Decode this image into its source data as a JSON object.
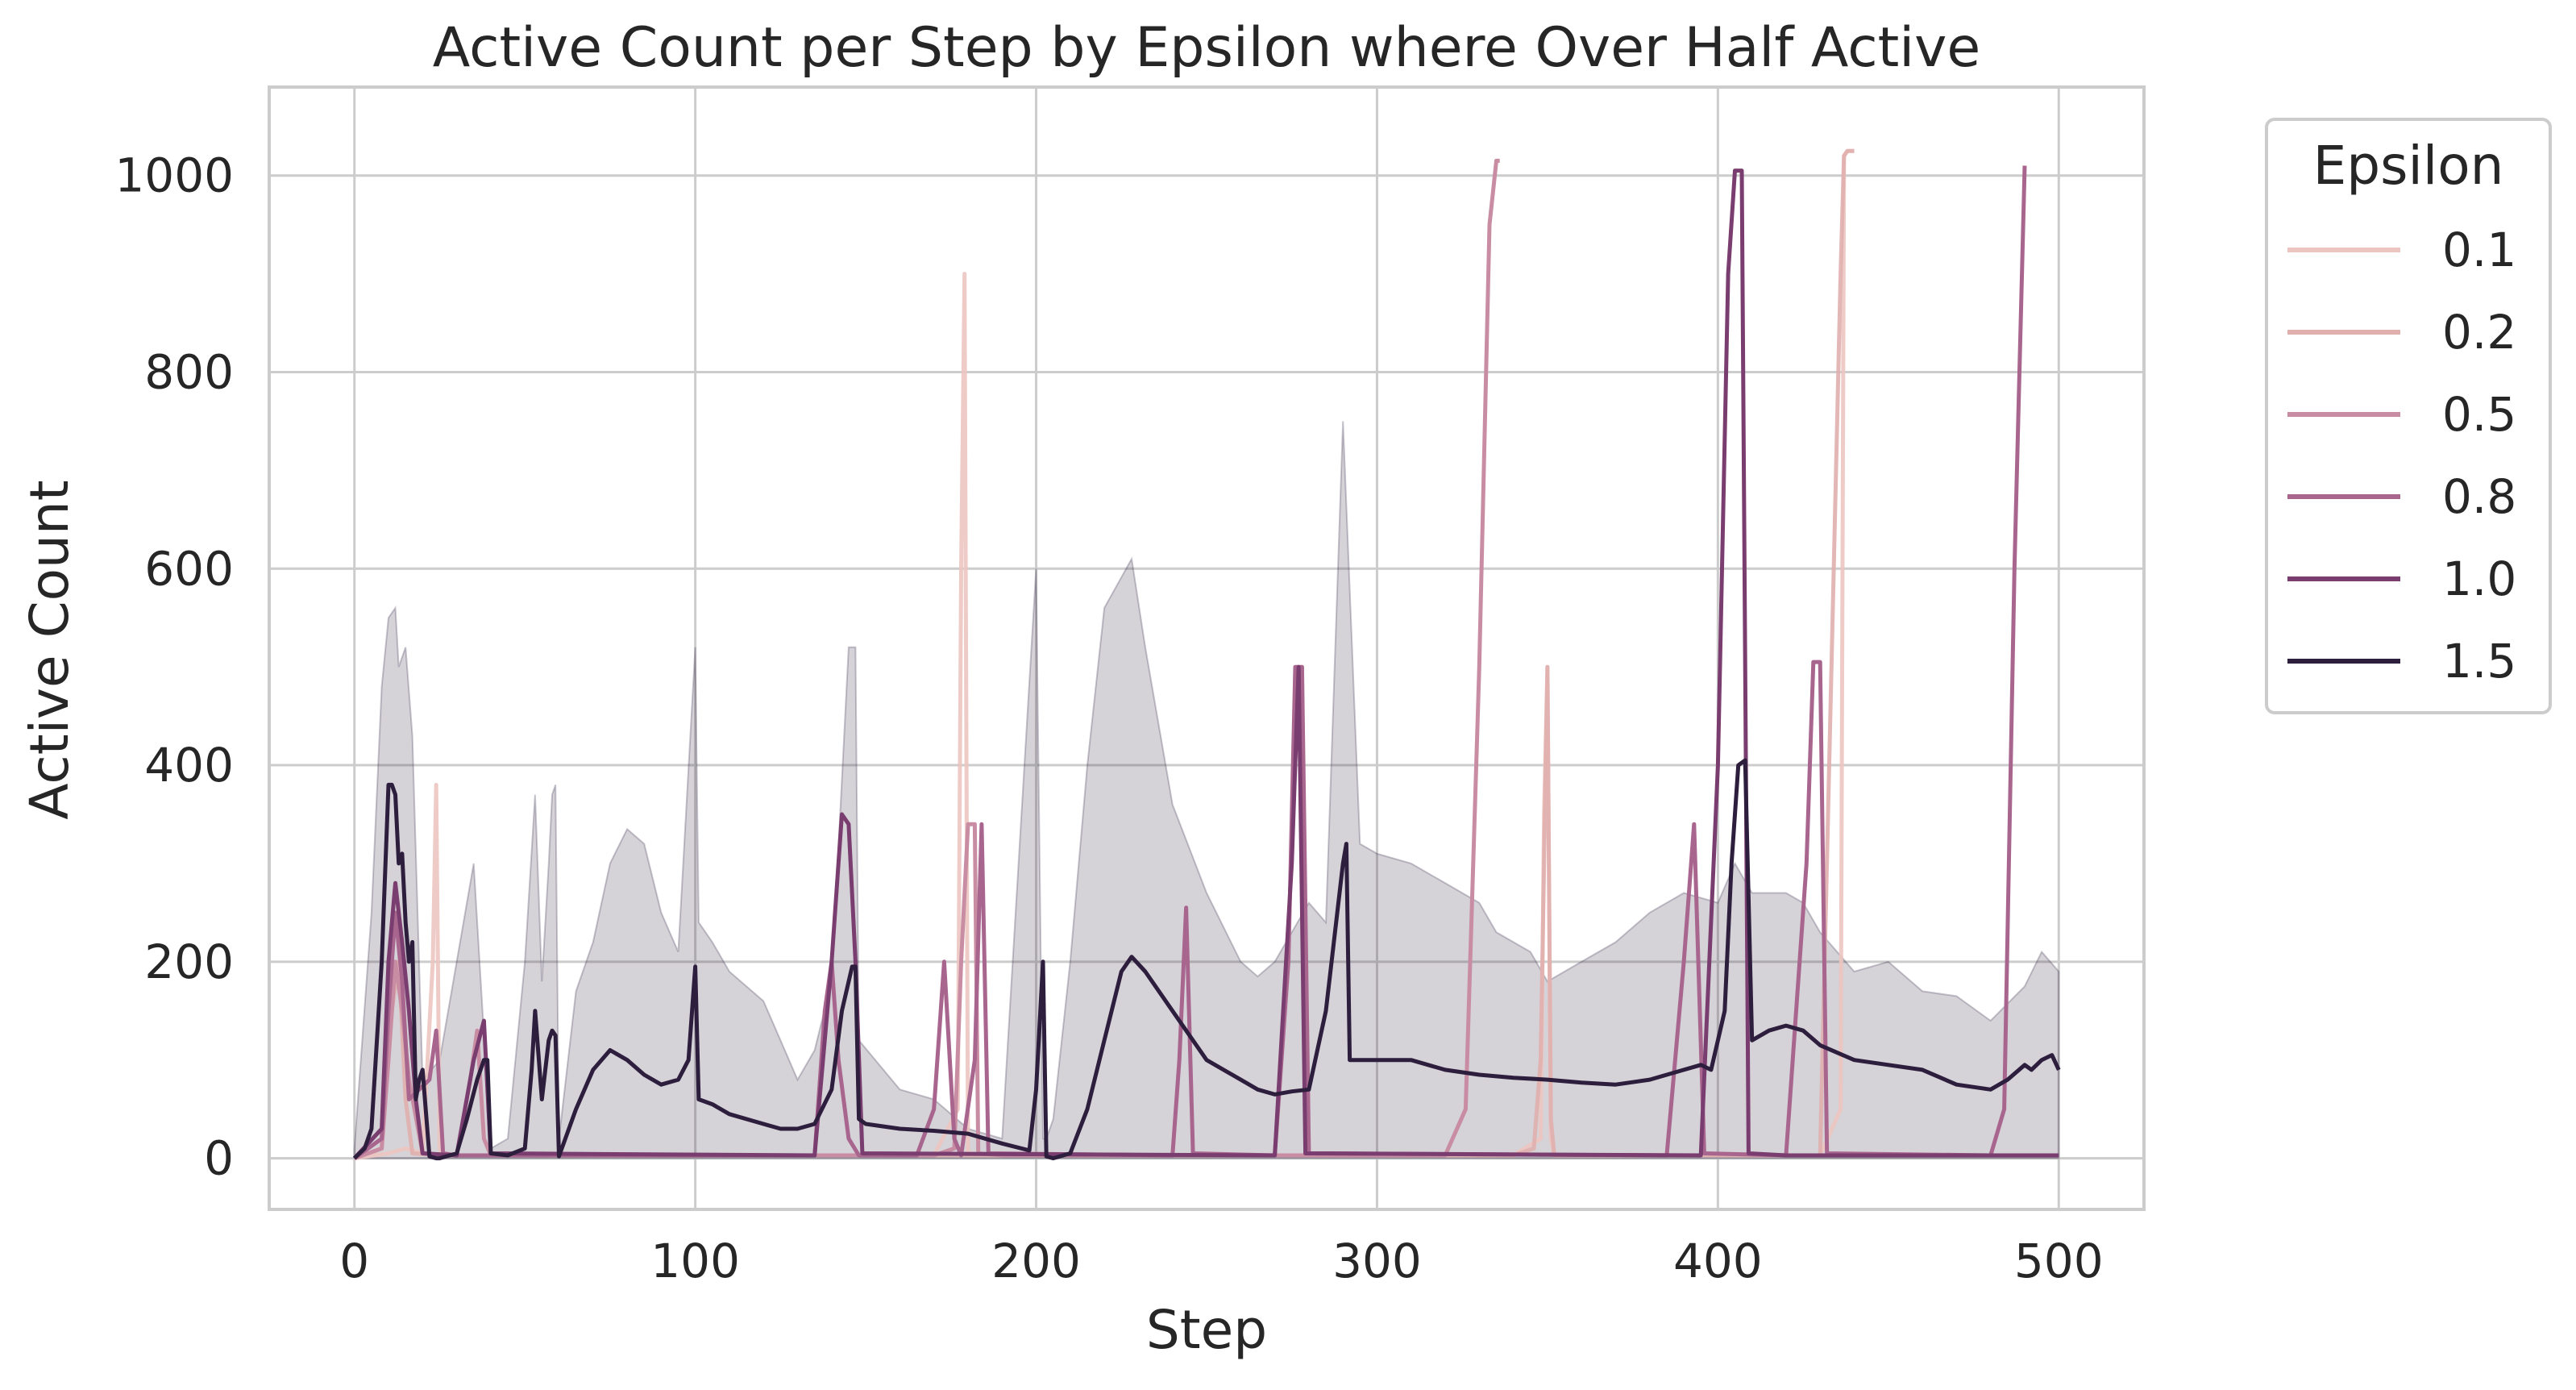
{
  "chart_data": {
    "type": "line",
    "title": "Active Count per Step by Epsilon where Over Half Active",
    "xlabel": "Step",
    "ylabel": "Active Count",
    "xlim": [
      -25,
      525
    ],
    "ylim": [
      -52,
      1090
    ],
    "xticks": [
      0,
      100,
      200,
      300,
      400,
      500
    ],
    "yticks": [
      0,
      200,
      400,
      600,
      800,
      1000
    ],
    "grid": true,
    "legend": {
      "title": "Epsilon",
      "placement": "outside-right-top"
    },
    "band": {
      "series": "1.5",
      "x": [
        0,
        5,
        8,
        10,
        12,
        13,
        15,
        17,
        20,
        25,
        35,
        40,
        45,
        50,
        53,
        55,
        57,
        58,
        59,
        60,
        65,
        70,
        75,
        80,
        85,
        90,
        95,
        100,
        101,
        105,
        110,
        120,
        125,
        130,
        135,
        140,
        145,
        147,
        148,
        160,
        170,
        180,
        190,
        200,
        202,
        203,
        205,
        210,
        215,
        220,
        228,
        232,
        240,
        250,
        260,
        265,
        270,
        275,
        280,
        285,
        290,
        295,
        300,
        310,
        320,
        330,
        335,
        345,
        350,
        360,
        370,
        380,
        390,
        400,
        405,
        410,
        420,
        425,
        430,
        440,
        450,
        460,
        470,
        480,
        490,
        495,
        500
      ],
      "upper": [
        10,
        250,
        480,
        550,
        560,
        500,
        520,
        430,
        80,
        100,
        300,
        10,
        20,
        200,
        370,
        180,
        300,
        370,
        380,
        20,
        170,
        220,
        300,
        335,
        320,
        250,
        210,
        520,
        240,
        220,
        190,
        160,
        120,
        80,
        110,
        180,
        520,
        520,
        120,
        70,
        60,
        30,
        20,
        600,
        20,
        20,
        40,
        200,
        400,
        560,
        610,
        520,
        360,
        270,
        200,
        185,
        200,
        230,
        260,
        240,
        750,
        320,
        310,
        300,
        280,
        260,
        230,
        210,
        180,
        200,
        220,
        250,
        270,
        260,
        300,
        270,
        270,
        260,
        230,
        190,
        200,
        170,
        165,
        140,
        175,
        210,
        190
      ],
      "lower": [
        0,
        0,
        0,
        0,
        0,
        0,
        0,
        0,
        0,
        0,
        0,
        0,
        0,
        0,
        0,
        0,
        0,
        0,
        0,
        0,
        0,
        0,
        0,
        0,
        0,
        0,
        0,
        0,
        0,
        0,
        0,
        0,
        0,
        0,
        0,
        0,
        0,
        0,
        0,
        0,
        0,
        0,
        0,
        0,
        0,
        0,
        0,
        0,
        0,
        0,
        0,
        0,
        0,
        0,
        0,
        0,
        0,
        0,
        0,
        0,
        0,
        0,
        0,
        0,
        0,
        0,
        0,
        0,
        0,
        0,
        0,
        0,
        0,
        0,
        0,
        0,
        0,
        0,
        0,
        0,
        0,
        0,
        0,
        0,
        0,
        0,
        0
      ]
    },
    "series": [
      {
        "name": "0.1",
        "color": "#ecc5c0",
        "opacity": 0.9,
        "x": [
          0,
          10,
          15,
          20,
          23,
          24,
          25,
          26,
          30,
          170,
          177,
          178,
          179,
          180,
          190,
          340,
          348,
          349,
          350,
          351,
          352,
          360,
          430,
          436,
          437,
          438,
          440
        ],
        "y": [
          0,
          5,
          10,
          5,
          200,
          380,
          10,
          3,
          3,
          3,
          50,
          600,
          900,
          5,
          3,
          3,
          20,
          350,
          500,
          20,
          3,
          3,
          3,
          50,
          1020,
          1025,
          1025
        ]
      },
      {
        "name": "0.2",
        "color": "#e0afae",
        "opacity": 0.9,
        "x": [
          0,
          8,
          11,
          13,
          15,
          17,
          25,
          340,
          346,
          348,
          350,
          351,
          352,
          360,
          430,
          436,
          437,
          438,
          440
        ],
        "y": [
          0,
          10,
          150,
          200,
          60,
          5,
          3,
          3,
          10,
          100,
          500,
          40,
          3,
          3,
          3,
          900,
          1020,
          1025,
          1025
        ]
      },
      {
        "name": "0.5",
        "color": "#c98da3",
        "opacity": 1,
        "x": [
          0,
          8,
          10,
          12,
          14,
          16,
          20,
          30,
          34,
          36,
          38,
          40,
          170,
          176,
          178,
          180,
          182,
          183,
          190,
          320,
          326,
          330,
          333,
          335,
          336
        ],
        "y": [
          0,
          10,
          100,
          200,
          150,
          80,
          5,
          3,
          80,
          130,
          20,
          3,
          3,
          10,
          200,
          340,
          340,
          5,
          3,
          3,
          50,
          500,
          950,
          1015,
          1015
        ]
      },
      {
        "name": "0.8",
        "color": "#a8668f",
        "opacity": 1,
        "x": [
          0,
          8,
          10,
          12,
          14,
          16,
          22,
          24,
          26,
          30,
          135,
          138,
          140,
          142,
          145,
          148,
          150,
          165,
          170,
          173,
          176,
          178,
          182,
          184,
          186,
          240,
          242,
          244,
          246,
          270,
          274,
          276,
          278,
          280,
          385,
          390,
          393,
          396,
          420,
          426,
          428,
          430,
          432,
          480,
          484,
          487,
          490
        ],
        "y": [
          0,
          20,
          150,
          250,
          180,
          60,
          80,
          130,
          5,
          3,
          3,
          150,
          200,
          100,
          20,
          3,
          3,
          3,
          50,
          200,
          20,
          3,
          100,
          340,
          5,
          3,
          100,
          255,
          5,
          3,
          200,
          500,
          500,
          5,
          3,
          200,
          340,
          5,
          3,
          300,
          505,
          505,
          5,
          3,
          50,
          600,
          1010
        ]
      },
      {
        "name": "1.0",
        "color": "#7a3d6f",
        "opacity": 1,
        "x": [
          0,
          8,
          10,
          12,
          14,
          16,
          18,
          20,
          30,
          35,
          38,
          40,
          135,
          140,
          143,
          145,
          147,
          149,
          270,
          275,
          277,
          279,
          395,
          400,
          403,
          405,
          407,
          409,
          420,
          460,
          500
        ],
        "y": [
          0,
          30,
          200,
          280,
          220,
          150,
          60,
          5,
          3,
          100,
          140,
          5,
          3,
          200,
          350,
          340,
          200,
          5,
          3,
          300,
          500,
          5,
          3,
          400,
          900,
          1005,
          1005,
          5,
          3,
          3,
          3
        ]
      },
      {
        "name": "1.5",
        "color": "#2d1e3e",
        "opacity": 1,
        "x": [
          0,
          3,
          5,
          8,
          10,
          11,
          12,
          13,
          14,
          15,
          16,
          17,
          18,
          19,
          20,
          22,
          24,
          25,
          26,
          30,
          33,
          36,
          38,
          39,
          40,
          45,
          50,
          52,
          53,
          55,
          57,
          58,
          59,
          60,
          65,
          70,
          75,
          80,
          85,
          90,
          95,
          98,
          100,
          101,
          105,
          110,
          120,
          125,
          130,
          135,
          140,
          143,
          146,
          147,
          148,
          150,
          160,
          170,
          180,
          190,
          198,
          200,
          202,
          203,
          205,
          210,
          215,
          220,
          225,
          228,
          232,
          240,
          250,
          260,
          265,
          270,
          275,
          280,
          285,
          290,
          291,
          292,
          300,
          310,
          320,
          330,
          340,
          350,
          360,
          370,
          380,
          390,
          395,
          398,
          400,
          402,
          404,
          406,
          408,
          410,
          415,
          420,
          425,
          430,
          440,
          450,
          460,
          470,
          480,
          485,
          490,
          492,
          495,
          498,
          500
        ],
        "y": [
          0,
          10,
          30,
          200,
          380,
          380,
          370,
          300,
          310,
          240,
          200,
          220,
          60,
          80,
          90,
          2,
          0,
          0,
          1,
          5,
          40,
          80,
          100,
          100,
          5,
          3,
          10,
          90,
          150,
          60,
          120,
          130,
          125,
          2,
          50,
          90,
          110,
          100,
          85,
          75,
          80,
          100,
          195,
          60,
          55,
          45,
          35,
          30,
          30,
          35,
          70,
          150,
          195,
          195,
          40,
          35,
          30,
          28,
          25,
          15,
          8,
          70,
          200,
          2,
          0,
          5,
          50,
          120,
          190,
          205,
          190,
          150,
          100,
          80,
          70,
          65,
          68,
          70,
          150,
          300,
          320,
          100,
          100,
          100,
          90,
          85,
          82,
          80,
          77,
          75,
          80,
          90,
          95,
          90,
          120,
          150,
          300,
          400,
          405,
          120,
          130,
          135,
          130,
          115,
          100,
          95,
          90,
          75,
          70,
          80,
          95,
          90,
          100,
          105,
          90
        ]
      }
    ]
  }
}
